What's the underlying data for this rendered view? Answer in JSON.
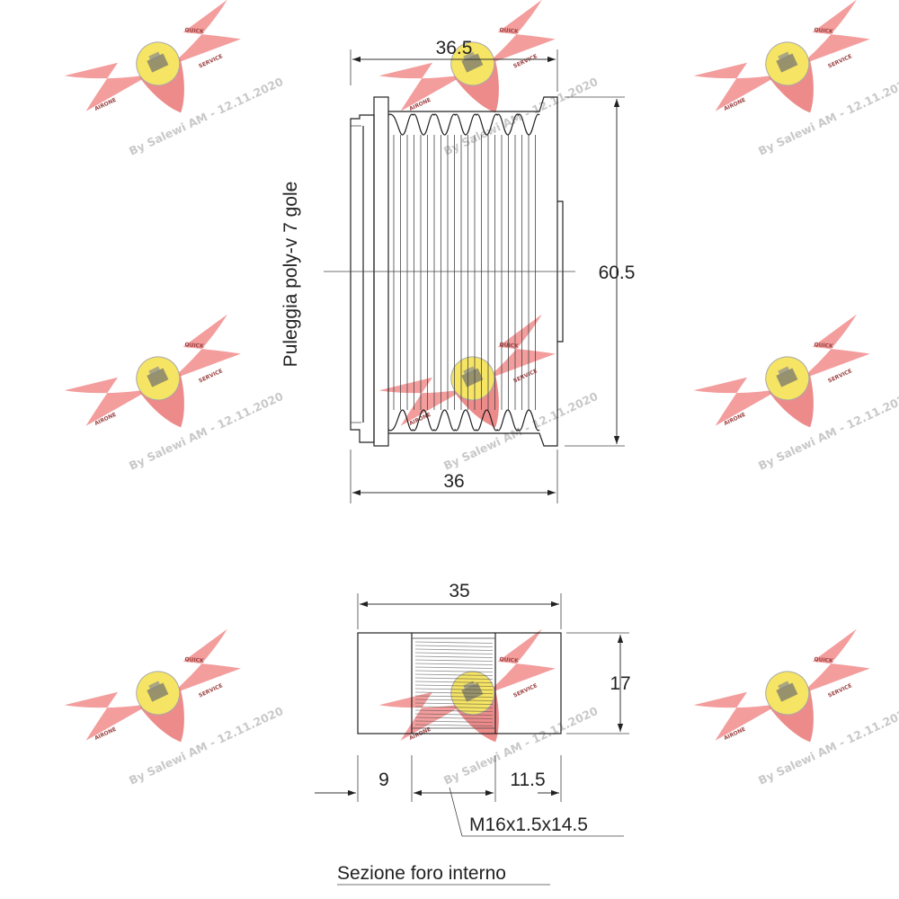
{
  "drawing": {
    "pulley_label": "Puleggia poly-v 7 gole",
    "section_label": "Sezione foro interno",
    "dimensions": {
      "outer_width": "36.5",
      "inner_width": "36",
      "diameter": "60.5",
      "bore_length": "35",
      "bore_diameter": "17",
      "left_offset": "9",
      "right_offset": "11.5",
      "thread": "M16x1.5x14.5"
    }
  },
  "watermark": {
    "text": "By Salewi AM - 12.11.2020",
    "top_badge": "QUICK",
    "left_badge": "AIRONE",
    "bottom_badge": "SERVICE",
    "wing_color": "#f08080",
    "disc_color": "#f5e04a"
  }
}
